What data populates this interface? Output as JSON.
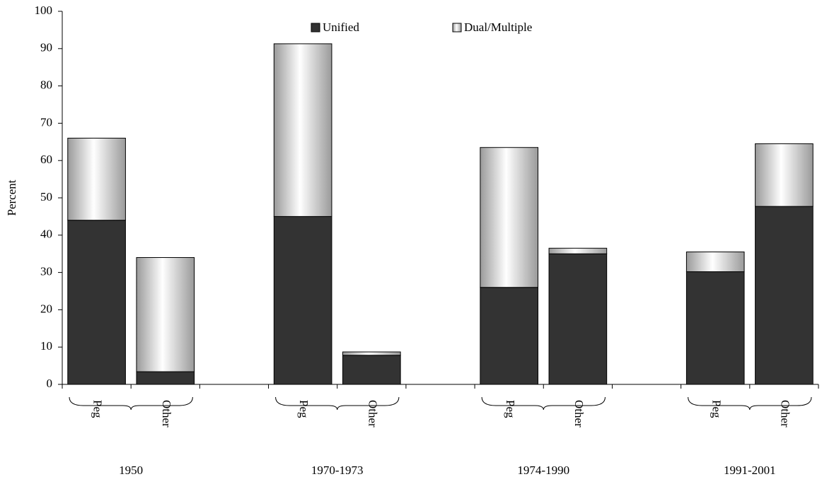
{
  "chart_data": {
    "type": "stacked_bar",
    "y_label": "Percent",
    "categories": [
      "Peg",
      "Other",
      null,
      "Peg",
      "Other",
      null,
      "Peg",
      "Other",
      null,
      "Peg",
      "Other"
    ],
    "groups": [
      "1950",
      "1970-1973",
      "1974-1990",
      "1991-2001"
    ],
    "series": [
      {
        "name": "Unified",
        "color": "#333333",
        "values": [
          44,
          3.4,
          null,
          45,
          7.8,
          null,
          26,
          35,
          null,
          30.2,
          47.7
        ]
      },
      {
        "name": "Dual/Multiple",
        "color": "#9a9a9a",
        "values": [
          22,
          30.6,
          null,
          46.3,
          0.9,
          null,
          37.5,
          1.5,
          null,
          5.3,
          16.8
        ]
      }
    ],
    "ylim": [
      0,
      100
    ],
    "yticks": [
      0,
      10,
      20,
      30,
      40,
      50,
      60,
      70,
      80,
      90,
      100
    ],
    "grid": false,
    "legend": "top"
  }
}
